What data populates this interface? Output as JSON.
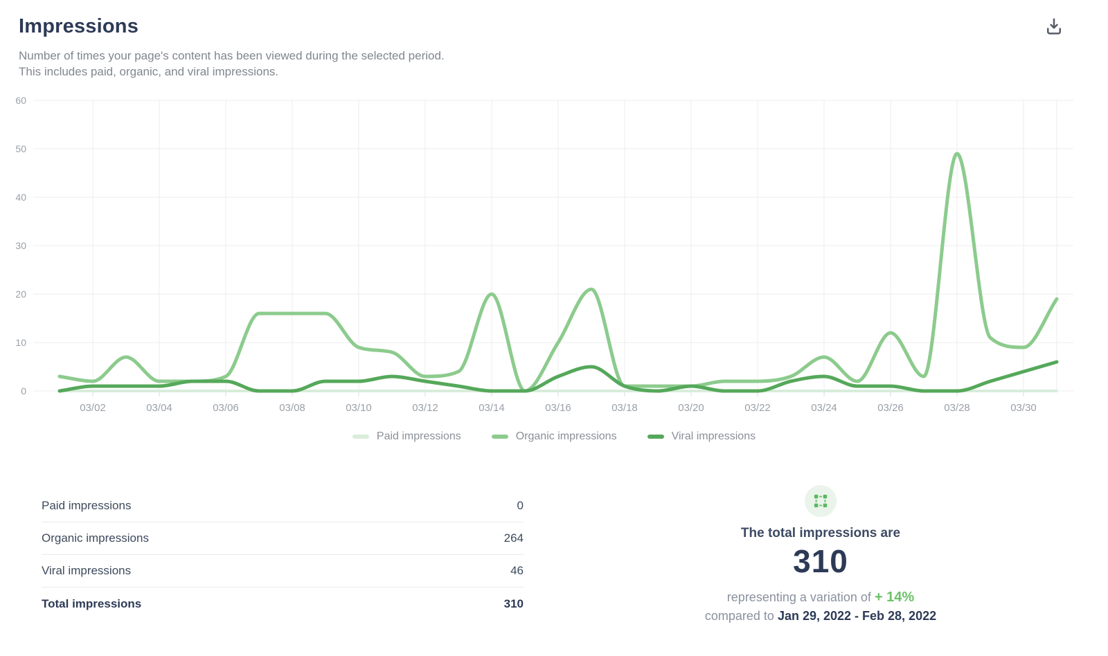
{
  "header": {
    "title": "Impressions",
    "subtitle_line1": "Number of times your page's content has been viewed during the selected period.",
    "subtitle_line2": "This includes paid, organic, and viral impressions."
  },
  "chart_data": {
    "type": "line",
    "title": "Impressions",
    "x": [
      "03/01",
      "03/02",
      "03/03",
      "03/04",
      "03/05",
      "03/06",
      "03/07",
      "03/08",
      "03/09",
      "03/10",
      "03/11",
      "03/12",
      "03/13",
      "03/14",
      "03/15",
      "03/16",
      "03/17",
      "03/18",
      "03/19",
      "03/20",
      "03/21",
      "03/22",
      "03/23",
      "03/24",
      "03/25",
      "03/26",
      "03/27",
      "03/28",
      "03/29",
      "03/30",
      "03/31"
    ],
    "x_tick_labels": [
      "03/02",
      "03/04",
      "03/06",
      "03/08",
      "03/10",
      "03/12",
      "03/14",
      "03/16",
      "03/18",
      "03/20",
      "03/22",
      "03/24",
      "03/26",
      "03/28",
      "03/30"
    ],
    "series": [
      {
        "name": "Paid impressions",
        "color": "#d9edda",
        "values": [
          0,
          0,
          0,
          0,
          0,
          0,
          0,
          0,
          0,
          0,
          0,
          0,
          0,
          0,
          0,
          0,
          0,
          0,
          0,
          0,
          0,
          0,
          0,
          0,
          0,
          0,
          0,
          0,
          0,
          0,
          0
        ]
      },
      {
        "name": "Organic impressions",
        "color": "#8ccb8d",
        "values": [
          3,
          2,
          7,
          2,
          2,
          3,
          16,
          16,
          16,
          9,
          8,
          3,
          4,
          20,
          0,
          10,
          21,
          1,
          1,
          1,
          2,
          2,
          3,
          7,
          2,
          12,
          3,
          49,
          11,
          9,
          19
        ]
      },
      {
        "name": "Viral impressions",
        "color": "#55a85a",
        "values": [
          0,
          1,
          1,
          1,
          2,
          2,
          0,
          0,
          2,
          2,
          3,
          2,
          1,
          0,
          0,
          3,
          5,
          1,
          0,
          1,
          0,
          0,
          2,
          3,
          1,
          1,
          0,
          0,
          2,
          4,
          6
        ]
      }
    ],
    "ylim": [
      0,
      60
    ],
    "yticks": [
      0,
      10,
      20,
      30,
      40,
      50,
      60
    ],
    "grid": true,
    "legend_position": "bottom"
  },
  "summary_table": {
    "rows": [
      {
        "label": "Paid impressions",
        "value": "0"
      },
      {
        "label": "Organic impressions",
        "value": "264"
      },
      {
        "label": "Viral impressions",
        "value": "46"
      }
    ],
    "total": {
      "label": "Total impressions",
      "value": "310"
    }
  },
  "summary_panel": {
    "icon": "selection-frame-icon",
    "heading": "The total impressions are",
    "total": "310",
    "variation_prefix": "representing a variation of",
    "variation_value": "+ 14%",
    "compare_prefix": "compared to",
    "compare_range": "Jan 29, 2022 - Feb 28, 2022"
  },
  "colors": {
    "title": "#2d3a56",
    "subtitle": "#80868f",
    "axis_labels": "#9aa0a8",
    "gridline": "#ededee",
    "paid": "#d9edda",
    "organic": "#8ccb8d",
    "viral": "#55a85a",
    "accent_green": "#6cc167",
    "icon_circle_bg": "#eaf4ea"
  }
}
